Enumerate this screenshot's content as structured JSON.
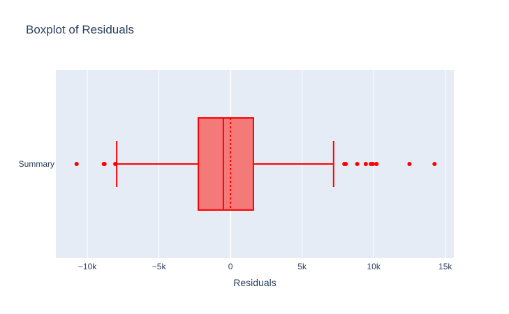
{
  "chart_data": {
    "type": "box",
    "orientation": "horizontal",
    "title": "Boxplot of Residuals",
    "xlabel": "Residuals",
    "ylabel": "",
    "xlim": [
      -12200,
      15600
    ],
    "grid": true,
    "legend": "none",
    "x_ticks": [
      {
        "value": -10000,
        "label": "−10k"
      },
      {
        "value": -5000,
        "label": "−5k"
      },
      {
        "value": 0,
        "label": "0"
      },
      {
        "value": 5000,
        "label": "5k"
      },
      {
        "value": 10000,
        "label": "10k"
      },
      {
        "value": 15000,
        "label": "15k"
      }
    ],
    "categories": [
      "Summary"
    ],
    "series": [
      {
        "lower_fence": -7950,
        "q1": -2250,
        "median": -500,
        "mean": 0,
        "q3": 1600,
        "upper_fence": 7200,
        "outliers": [
          -10750,
          -8850,
          -8800,
          -8050,
          7950,
          8050,
          8850,
          9450,
          9800,
          9950,
          10200,
          12500,
          14250
        ]
      }
    ],
    "colors": {
      "box_line": "#ff0000",
      "box_fill": "#f47a7a",
      "plot_bg": "#e5ecf6",
      "grid": "#ffffff",
      "text": "#2a3f5f"
    }
  }
}
